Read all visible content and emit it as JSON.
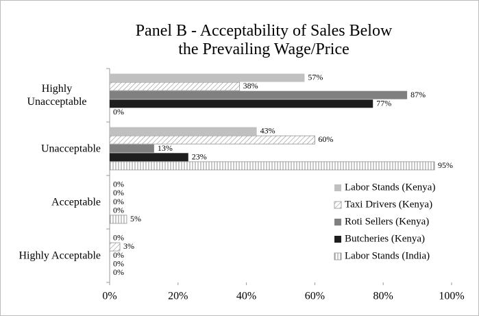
{
  "chart_data": {
    "type": "hbar",
    "title": "Panel B - Acceptability of Sales Below the Prevailing Wage/Price",
    "categories": [
      "Highly Unacceptable",
      "Unacceptable",
      "Acceptable",
      "Highly Acceptable"
    ],
    "series": [
      {
        "name": "Labor Stands (Kenya)",
        "color": "#c0c0c0",
        "pattern": "solid",
        "values": [
          57,
          43,
          0,
          0
        ],
        "value_labels": [
          "57%",
          "43%",
          "0%",
          "0%"
        ]
      },
      {
        "name": "Taxi Drivers (Kenya)",
        "color": "#909090",
        "pattern": "diagonal",
        "values": [
          38,
          60,
          0,
          3
        ],
        "value_labels": [
          "38%",
          "60%",
          "0%",
          "3%"
        ]
      },
      {
        "name": "Roti Sellers (Kenya)",
        "color": "#808080",
        "pattern": "solid",
        "values": [
          87,
          13,
          0,
          0
        ],
        "value_labels": [
          "87%",
          "13%",
          "0%",
          "0%"
        ]
      },
      {
        "name": "Butcheries (Kenya)",
        "color": "#1e1e1e",
        "pattern": "solid",
        "values": [
          77,
          23,
          0,
          0
        ],
        "value_labels": [
          "77%",
          "23%",
          "0%",
          "0%"
        ]
      },
      {
        "name": "Labor Stands (India)",
        "color": "#909090",
        "pattern": "vertical",
        "values": [
          0,
          95,
          5,
          0
        ],
        "value_labels": [
          "0%",
          "95%",
          "5%",
          "0%"
        ]
      }
    ],
    "xlim": [
      0,
      100
    ],
    "xticks": [
      {
        "value": 0,
        "label": "0%"
      },
      {
        "value": 20,
        "label": "20%"
      },
      {
        "value": 40,
        "label": "40%"
      },
      {
        "value": 60,
        "label": "60%"
      },
      {
        "value": 80,
        "label": "80%"
      },
      {
        "value": 100,
        "label": "100%"
      }
    ],
    "legend": "right"
  }
}
